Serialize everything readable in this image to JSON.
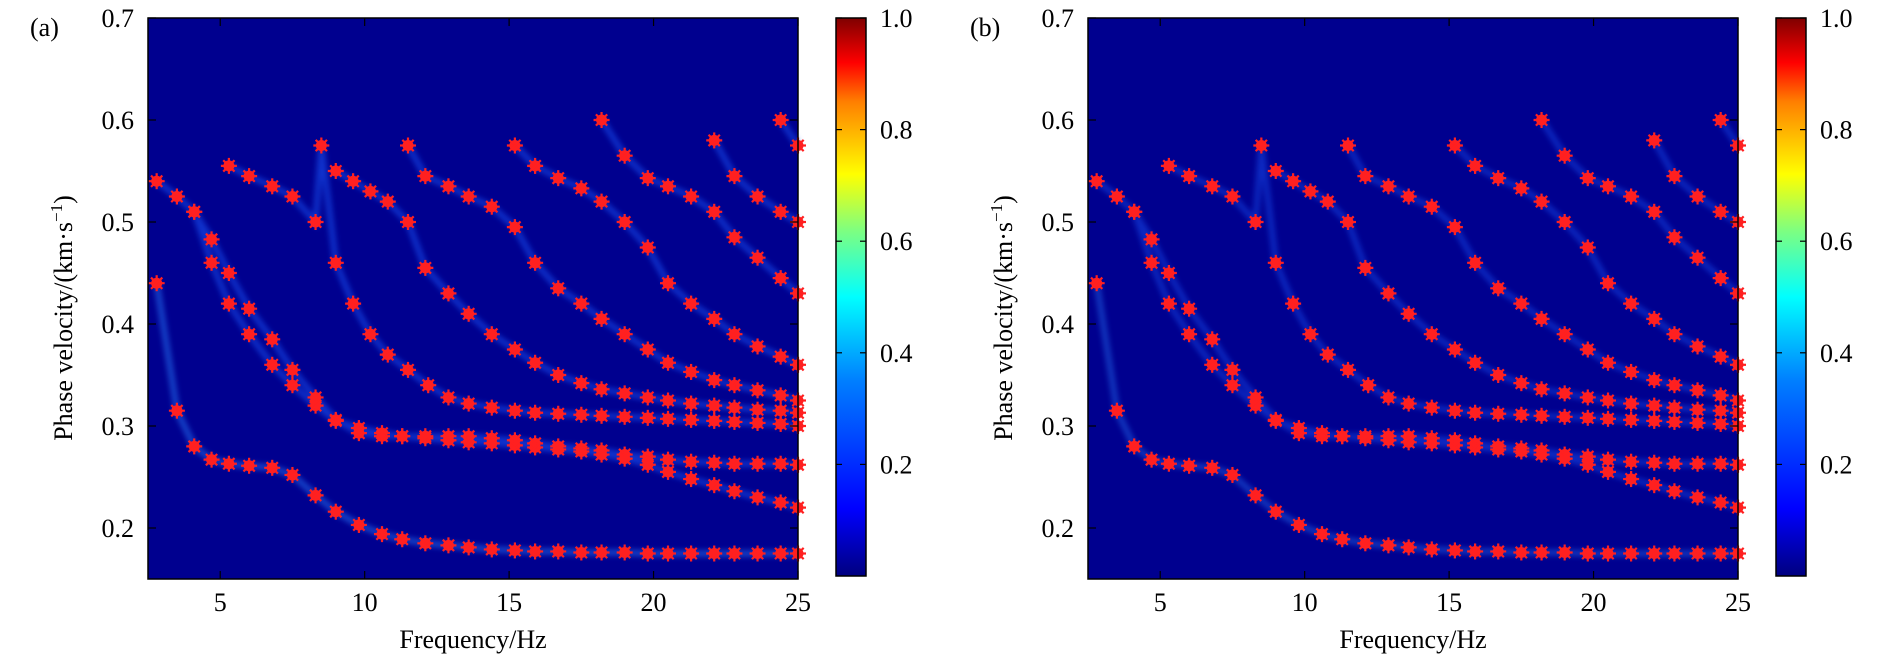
{
  "colors": {
    "background": "#00008f",
    "marker": "#ff2020",
    "colormap": [
      "#00007f",
      "#0000ff",
      "#007fff",
      "#00ffff",
      "#7fff7f",
      "#ffff00",
      "#ff7f00",
      "#ff0000",
      "#7f0000"
    ]
  },
  "shared": {
    "xlabel": "Frequency/Hz",
    "ylabel_prefix": "Phase velocity/(km·s",
    "ylabel_sup": "−1",
    "ylabel_suffix": ")",
    "xlim": [
      2.5,
      25
    ],
    "ylim": [
      0.15,
      0.7
    ],
    "xticks": [
      "5",
      "10",
      "15",
      "20",
      "25"
    ],
    "yticks": [
      "0.2",
      "0.3",
      "0.4",
      "0.5",
      "0.6",
      "0.7"
    ],
    "cbar_ticks": [
      "0.2",
      "0.4",
      "0.6",
      "0.8",
      "1.0"
    ],
    "cbar_range": [
      0,
      1
    ]
  },
  "chart_data": [
    {
      "type": "heatmap",
      "panel": "(a)",
      "xlabel": "Frequency/Hz",
      "ylabel": "Phase velocity/(km·s−1)",
      "xlim": [
        2.5,
        25
      ],
      "ylim": [
        0.15,
        0.7
      ],
      "colorbar": {
        "min": 0,
        "max": 1,
        "ticks": [
          0.2,
          0.4,
          0.6,
          0.8,
          1.0
        ]
      },
      "grid": false,
      "picked_points": [
        {
          "x": [
            2.8,
            3.5,
            4.1,
            4.7,
            5.3,
            6.0,
            6.8,
            7.5,
            8.3,
            9.0,
            9.8,
            10.6,
            11.3,
            12.1,
            12.9,
            13.6,
            14.4,
            15.2,
            15.9,
            16.7,
            17.5,
            18.2,
            19.0,
            19.8,
            20.5,
            21.3,
            22.1,
            22.8,
            23.6,
            24.4,
            25.0
          ],
          "y": [
            0.44,
            0.315,
            0.28,
            0.267,
            0.263,
            0.261,
            0.259,
            0.252,
            0.232,
            0.216,
            0.203,
            0.194,
            0.189,
            0.185,
            0.183,
            0.181,
            0.179,
            0.178,
            0.177,
            0.177,
            0.176,
            0.176,
            0.176,
            0.175,
            0.175,
            0.175,
            0.175,
            0.175,
            0.175,
            0.175,
            0.175
          ]
        },
        {
          "x": [
            4.1,
            4.7,
            5.3,
            6.0,
            6.8,
            7.5,
            8.3,
            9.0,
            9.8,
            10.6,
            11.3,
            12.1,
            12.9,
            13.6,
            14.4,
            15.2,
            15.9,
            16.7,
            17.5,
            18.2,
            19.0,
            19.8,
            20.5,
            21.3,
            22.1,
            22.8,
            23.6,
            24.4,
            25.0
          ],
          "y": [
            0.51,
            0.483,
            0.45,
            0.415,
            0.385,
            0.355,
            0.328,
            0.306,
            0.293,
            0.29,
            0.29,
            0.29,
            0.29,
            0.29,
            0.288,
            0.286,
            0.283,
            0.28,
            0.278,
            0.276,
            0.272,
            0.27,
            0.267,
            0.265,
            0.264,
            0.263,
            0.263,
            0.263,
            0.262
          ]
        },
        {
          "x": [
            2.8,
            3.5,
            4.1,
            4.7,
            5.3,
            6.0,
            6.8,
            7.5,
            8.3,
            9.0,
            9.8,
            10.6,
            11.3,
            12.1,
            12.9,
            13.6,
            14.4,
            15.2,
            15.9,
            16.7,
            17.5,
            18.2,
            19.0,
            19.8,
            20.5,
            21.3,
            22.1,
            22.8,
            23.6,
            24.4,
            25.0
          ],
          "y": [
            0.54,
            0.525,
            0.51,
            0.46,
            0.42,
            0.39,
            0.36,
            0.34,
            0.32,
            0.305,
            0.298,
            0.293,
            0.29,
            0.288,
            0.286,
            0.284,
            0.283,
            0.281,
            0.279,
            0.277,
            0.275,
            0.272,
            0.268,
            0.262,
            0.255,
            0.248,
            0.242,
            0.236,
            0.23,
            0.225,
            0.22
          ]
        },
        {
          "x": [
            5.3,
            6.0,
            6.8,
            7.5,
            8.3,
            8.5,
            9.0,
            9.6,
            10.2,
            10.8,
            11.5,
            12.2,
            12.9,
            13.6,
            14.4,
            15.2,
            15.9,
            16.7,
            17.5,
            18.2,
            19.0,
            19.8,
            20.5,
            21.3,
            22.1,
            22.8,
            23.6,
            24.4,
            25.0
          ],
          "y": [
            0.555,
            0.545,
            0.535,
            0.525,
            0.5,
            0.575,
            0.46,
            0.42,
            0.39,
            0.37,
            0.355,
            0.34,
            0.328,
            0.322,
            0.318,
            0.315,
            0.313,
            0.312,
            0.311,
            0.31,
            0.309,
            0.308,
            0.307,
            0.306,
            0.305,
            0.304,
            0.303,
            0.302,
            0.3
          ]
        },
        {
          "x": [
            9.0,
            9.6,
            10.2,
            10.8,
            11.5,
            12.1,
            12.9,
            13.6,
            14.4,
            15.2,
            15.9,
            16.7,
            17.5,
            18.2,
            19.0,
            19.8,
            20.5,
            21.3,
            22.1,
            22.8,
            23.6,
            24.4,
            25.0
          ],
          "y": [
            0.55,
            0.54,
            0.53,
            0.52,
            0.5,
            0.455,
            0.43,
            0.41,
            0.39,
            0.375,
            0.362,
            0.35,
            0.342,
            0.336,
            0.332,
            0.328,
            0.325,
            0.322,
            0.32,
            0.318,
            0.316,
            0.315,
            0.313
          ]
        },
        {
          "x": [
            11.5,
            12.1,
            12.9,
            13.6,
            14.4,
            15.2,
            15.9,
            16.7,
            17.5,
            18.2,
            19.0,
            19.8,
            20.5,
            21.3,
            22.1,
            22.8,
            23.6,
            24.4,
            25.0
          ],
          "y": [
            0.575,
            0.545,
            0.535,
            0.525,
            0.515,
            0.495,
            0.46,
            0.435,
            0.42,
            0.405,
            0.39,
            0.375,
            0.362,
            0.353,
            0.345,
            0.34,
            0.335,
            0.33,
            0.325
          ]
        },
        {
          "x": [
            15.2,
            15.9,
            16.7,
            17.5,
            18.2,
            19.0,
            19.8,
            20.5,
            21.3,
            22.1,
            22.8,
            23.6,
            24.4,
            25.0
          ],
          "y": [
            0.575,
            0.555,
            0.543,
            0.533,
            0.52,
            0.5,
            0.475,
            0.44,
            0.42,
            0.405,
            0.39,
            0.378,
            0.368,
            0.36
          ]
        },
        {
          "x": [
            18.2,
            19.0,
            19.8,
            20.5,
            21.3,
            22.1,
            22.8,
            23.6,
            24.4,
            25.0
          ],
          "y": [
            0.6,
            0.565,
            0.543,
            0.535,
            0.525,
            0.51,
            0.485,
            0.465,
            0.445,
            0.43
          ]
        },
        {
          "x": [
            22.1,
            22.8,
            23.6,
            24.4,
            25.0
          ],
          "y": [
            0.58,
            0.545,
            0.525,
            0.51,
            0.5
          ]
        },
        {
          "x": [
            24.4,
            25.0
          ],
          "y": [
            0.6,
            0.575
          ]
        }
      ]
    },
    {
      "type": "heatmap",
      "panel": "(b)",
      "xlabel": "Frequency/Hz",
      "ylabel": "Phase velocity/(km·s−1)",
      "xlim": [
        2.5,
        25
      ],
      "ylim": [
        0.15,
        0.7
      ],
      "colorbar": {
        "min": 0,
        "max": 1,
        "ticks": [
          0.2,
          0.4,
          0.6,
          0.8,
          1.0
        ]
      },
      "grid": false,
      "picked_points": [
        {
          "x": [
            2.8,
            3.5,
            4.1,
            4.7,
            5.3,
            6.0,
            6.8,
            7.5,
            8.3,
            9.0,
            9.8,
            10.6,
            11.3,
            12.1,
            12.9,
            13.6,
            14.4,
            15.2,
            15.9,
            16.7,
            17.5,
            18.2,
            19.0,
            19.8,
            20.5,
            21.3,
            22.1,
            22.8,
            23.6,
            24.4,
            25.0
          ],
          "y": [
            0.44,
            0.315,
            0.28,
            0.267,
            0.263,
            0.261,
            0.259,
            0.252,
            0.232,
            0.216,
            0.203,
            0.194,
            0.189,
            0.185,
            0.183,
            0.181,
            0.179,
            0.178,
            0.177,
            0.177,
            0.176,
            0.176,
            0.176,
            0.175,
            0.175,
            0.175,
            0.175,
            0.175,
            0.175,
            0.175,
            0.175
          ]
        },
        {
          "x": [
            4.1,
            4.7,
            5.3,
            6.0,
            6.8,
            7.5,
            8.3,
            9.0,
            9.8,
            10.6,
            11.3,
            12.1,
            12.9,
            13.6,
            14.4,
            15.2,
            15.9,
            16.7,
            17.5,
            18.2,
            19.0,
            19.8,
            20.5,
            21.3,
            22.1,
            22.8,
            23.6,
            24.4,
            25.0
          ],
          "y": [
            0.51,
            0.483,
            0.45,
            0.415,
            0.385,
            0.355,
            0.328,
            0.306,
            0.293,
            0.29,
            0.29,
            0.29,
            0.29,
            0.29,
            0.288,
            0.286,
            0.283,
            0.28,
            0.278,
            0.276,
            0.272,
            0.27,
            0.267,
            0.265,
            0.264,
            0.263,
            0.263,
            0.263,
            0.262
          ]
        },
        {
          "x": [
            2.8,
            3.5,
            4.1,
            4.7,
            5.3,
            6.0,
            6.8,
            7.5,
            8.3,
            9.0,
            9.8,
            10.6,
            11.3,
            12.1,
            12.9,
            13.6,
            14.4,
            15.2,
            15.9,
            16.7,
            17.5,
            18.2,
            19.0,
            19.8,
            20.5,
            21.3,
            22.1,
            22.8,
            23.6,
            24.4,
            25.0
          ],
          "y": [
            0.54,
            0.525,
            0.51,
            0.46,
            0.42,
            0.39,
            0.36,
            0.34,
            0.32,
            0.305,
            0.298,
            0.293,
            0.29,
            0.288,
            0.286,
            0.284,
            0.283,
            0.281,
            0.279,
            0.277,
            0.275,
            0.272,
            0.268,
            0.262,
            0.255,
            0.248,
            0.242,
            0.236,
            0.23,
            0.225,
            0.22
          ]
        },
        {
          "x": [
            5.3,
            6.0,
            6.8,
            7.5,
            8.3,
            8.5,
            9.0,
            9.6,
            10.2,
            10.8,
            11.5,
            12.2,
            12.9,
            13.6,
            14.4,
            15.2,
            15.9,
            16.7,
            17.5,
            18.2,
            19.0,
            19.8,
            20.5,
            21.3,
            22.1,
            22.8,
            23.6,
            24.4,
            25.0
          ],
          "y": [
            0.555,
            0.545,
            0.535,
            0.525,
            0.5,
            0.575,
            0.46,
            0.42,
            0.39,
            0.37,
            0.355,
            0.34,
            0.328,
            0.322,
            0.318,
            0.315,
            0.313,
            0.312,
            0.311,
            0.31,
            0.309,
            0.308,
            0.307,
            0.306,
            0.305,
            0.304,
            0.303,
            0.302,
            0.3
          ]
        },
        {
          "x": [
            9.0,
            9.6,
            10.2,
            10.8,
            11.5,
            12.1,
            12.9,
            13.6,
            14.4,
            15.2,
            15.9,
            16.7,
            17.5,
            18.2,
            19.0,
            19.8,
            20.5,
            21.3,
            22.1,
            22.8,
            23.6,
            24.4,
            25.0
          ],
          "y": [
            0.55,
            0.54,
            0.53,
            0.52,
            0.5,
            0.455,
            0.43,
            0.41,
            0.39,
            0.375,
            0.362,
            0.35,
            0.342,
            0.336,
            0.332,
            0.328,
            0.325,
            0.322,
            0.32,
            0.318,
            0.316,
            0.315,
            0.313
          ]
        },
        {
          "x": [
            11.5,
            12.1,
            12.9,
            13.6,
            14.4,
            15.2,
            15.9,
            16.7,
            17.5,
            18.2,
            19.0,
            19.8,
            20.5,
            21.3,
            22.1,
            22.8,
            23.6,
            24.4,
            25.0
          ],
          "y": [
            0.575,
            0.545,
            0.535,
            0.525,
            0.515,
            0.495,
            0.46,
            0.435,
            0.42,
            0.405,
            0.39,
            0.375,
            0.362,
            0.353,
            0.345,
            0.34,
            0.335,
            0.33,
            0.325
          ]
        },
        {
          "x": [
            15.2,
            15.9,
            16.7,
            17.5,
            18.2,
            19.0,
            19.8,
            20.5,
            21.3,
            22.1,
            22.8,
            23.6,
            24.4,
            25.0
          ],
          "y": [
            0.575,
            0.555,
            0.543,
            0.533,
            0.52,
            0.5,
            0.475,
            0.44,
            0.42,
            0.405,
            0.39,
            0.378,
            0.368,
            0.36
          ]
        },
        {
          "x": [
            18.2,
            19.0,
            19.8,
            20.5,
            21.3,
            22.1,
            22.8,
            23.6,
            24.4,
            25.0
          ],
          "y": [
            0.6,
            0.565,
            0.543,
            0.535,
            0.525,
            0.51,
            0.485,
            0.465,
            0.445,
            0.43
          ]
        },
        {
          "x": [
            22.1,
            22.8,
            23.6,
            24.4,
            25.0
          ],
          "y": [
            0.58,
            0.545,
            0.525,
            0.51,
            0.5
          ]
        },
        {
          "x": [
            24.4,
            25.0
          ],
          "y": [
            0.6,
            0.575
          ]
        }
      ]
    }
  ]
}
